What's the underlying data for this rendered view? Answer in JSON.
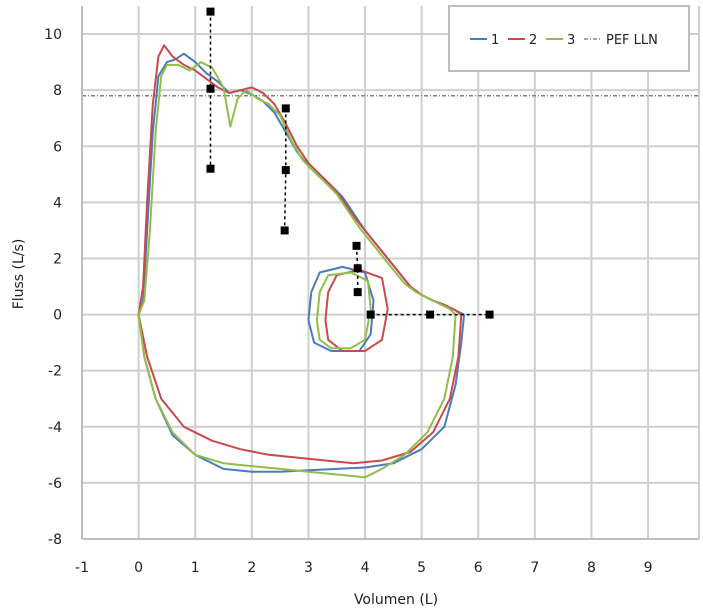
{
  "chart_data": {
    "type": "line",
    "title": "",
    "xlabel": "Volumen (L)",
    "ylabel": "Fluss (L/s)",
    "xlim": [
      -1,
      9.9
    ],
    "ylim": [
      -8,
      11
    ],
    "x_ticks": [
      "-1",
      "0",
      "1",
      "2",
      "3",
      "4",
      "5",
      "6",
      "7",
      "8",
      "9"
    ],
    "y_ticks": [
      "-8",
      "-6",
      "-4",
      "-2",
      "0",
      "2",
      "4",
      "6",
      "8",
      "10"
    ],
    "grid": true,
    "legend_position": "top-right",
    "pef_lln": {
      "name": "PEF LLN",
      "y": 7.8,
      "color": "#808080"
    },
    "series": [
      {
        "name": "1",
        "color": "#4a7bbd",
        "expiration": [
          [
            0,
            0
          ],
          [
            0.08,
            0.5
          ],
          [
            0.15,
            3
          ],
          [
            0.25,
            6.5
          ],
          [
            0.35,
            8.5
          ],
          [
            0.5,
            9
          ],
          [
            0.65,
            9.1
          ],
          [
            0.8,
            9.3
          ],
          [
            1.0,
            9.0
          ],
          [
            1.2,
            8.6
          ],
          [
            1.4,
            8.3
          ],
          [
            1.6,
            7.9
          ],
          [
            1.8,
            8.0
          ],
          [
            2.0,
            7.85
          ],
          [
            2.2,
            7.6
          ],
          [
            2.4,
            7.2
          ],
          [
            2.6,
            6.5
          ],
          [
            2.8,
            5.8
          ],
          [
            3.0,
            5.3
          ],
          [
            3.2,
            4.9
          ],
          [
            3.4,
            4.6
          ],
          [
            3.6,
            4.2
          ],
          [
            3.8,
            3.6
          ],
          [
            4.0,
            3.0
          ],
          [
            4.2,
            2.5
          ],
          [
            4.4,
            2.0
          ],
          [
            4.6,
            1.5
          ],
          [
            4.8,
            1.0
          ],
          [
            5.0,
            0.7
          ],
          [
            5.2,
            0.5
          ],
          [
            5.4,
            0.35
          ],
          [
            5.6,
            0.15
          ],
          [
            5.75,
            0
          ]
        ],
        "inspiration": [
          [
            5.75,
            0
          ],
          [
            5.7,
            -1
          ],
          [
            5.6,
            -2.5
          ],
          [
            5.4,
            -4
          ],
          [
            5.0,
            -4.8
          ],
          [
            4.5,
            -5.3
          ],
          [
            4.0,
            -5.45
          ],
          [
            3.5,
            -5.5
          ],
          [
            3.0,
            -5.55
          ],
          [
            2.5,
            -5.6
          ],
          [
            2.0,
            -5.6
          ],
          [
            1.5,
            -5.5
          ],
          [
            1.0,
            -5.0
          ],
          [
            0.6,
            -4.3
          ],
          [
            0.3,
            -3.0
          ],
          [
            0.1,
            -1.5
          ],
          [
            0,
            0
          ]
        ],
        "tidal": [
          [
            3.0,
            -0.2
          ],
          [
            3.05,
            0.8
          ],
          [
            3.2,
            1.5
          ],
          [
            3.6,
            1.7
          ],
          [
            4.0,
            1.5
          ],
          [
            4.15,
            0.5
          ],
          [
            4.1,
            -0.7
          ],
          [
            3.9,
            -1.3
          ],
          [
            3.4,
            -1.3
          ],
          [
            3.1,
            -1.0
          ],
          [
            3.0,
            -0.2
          ]
        ]
      },
      {
        "name": "2",
        "color": "#c94a4a",
        "expiration": [
          [
            0,
            0
          ],
          [
            0.08,
            1
          ],
          [
            0.15,
            4
          ],
          [
            0.25,
            7.5
          ],
          [
            0.35,
            9.2
          ],
          [
            0.45,
            9.6
          ],
          [
            0.6,
            9.2
          ],
          [
            0.8,
            8.9
          ],
          [
            1.0,
            8.7
          ],
          [
            1.2,
            8.4
          ],
          [
            1.4,
            8.1
          ],
          [
            1.6,
            7.9
          ],
          [
            1.8,
            8.0
          ],
          [
            2.0,
            8.1
          ],
          [
            2.2,
            7.9
          ],
          [
            2.4,
            7.5
          ],
          [
            2.6,
            6.8
          ],
          [
            2.8,
            6.0
          ],
          [
            3.0,
            5.4
          ],
          [
            3.2,
            5.0
          ],
          [
            3.4,
            4.6
          ],
          [
            3.6,
            4.1
          ],
          [
            3.8,
            3.5
          ],
          [
            4.0,
            3.0
          ],
          [
            4.2,
            2.5
          ],
          [
            4.4,
            2.0
          ],
          [
            4.6,
            1.5
          ],
          [
            4.8,
            1.0
          ],
          [
            5.0,
            0.7
          ],
          [
            5.2,
            0.5
          ],
          [
            5.4,
            0.35
          ],
          [
            5.6,
            0.15
          ],
          [
            5.7,
            0
          ]
        ],
        "inspiration": [
          [
            5.7,
            0
          ],
          [
            5.65,
            -1.5
          ],
          [
            5.5,
            -3
          ],
          [
            5.2,
            -4.2
          ],
          [
            4.8,
            -4.9
          ],
          [
            4.3,
            -5.2
          ],
          [
            3.8,
            -5.3
          ],
          [
            3.3,
            -5.2
          ],
          [
            2.8,
            -5.1
          ],
          [
            2.3,
            -5.0
          ],
          [
            1.8,
            -4.8
          ],
          [
            1.3,
            -4.5
          ],
          [
            0.8,
            -4.0
          ],
          [
            0.4,
            -3.0
          ],
          [
            0.15,
            -1.5
          ],
          [
            0,
            0
          ]
        ],
        "tidal": [
          [
            3.3,
            -0.2
          ],
          [
            3.35,
            0.8
          ],
          [
            3.5,
            1.4
          ],
          [
            3.9,
            1.6
          ],
          [
            4.3,
            1.3
          ],
          [
            4.4,
            0.2
          ],
          [
            4.3,
            -0.9
          ],
          [
            4.0,
            -1.3
          ],
          [
            3.6,
            -1.3
          ],
          [
            3.35,
            -0.9
          ],
          [
            3.3,
            -0.2
          ]
        ]
      },
      {
        "name": "3",
        "color": "#92bd4a",
        "expiration": [
          [
            0,
            0
          ],
          [
            0.1,
            0.5
          ],
          [
            0.2,
            3
          ],
          [
            0.3,
            6.5
          ],
          [
            0.4,
            8.5
          ],
          [
            0.5,
            8.9
          ],
          [
            0.7,
            8.9
          ],
          [
            0.9,
            8.7
          ],
          [
            1.1,
            9.0
          ],
          [
            1.3,
            8.8
          ],
          [
            1.5,
            8.1
          ],
          [
            1.62,
            6.7
          ],
          [
            1.75,
            7.7
          ],
          [
            1.9,
            8.0
          ],
          [
            2.1,
            7.7
          ],
          [
            2.3,
            7.5
          ],
          [
            2.5,
            7.1
          ],
          [
            2.7,
            6.2
          ],
          [
            2.9,
            5.5
          ],
          [
            3.1,
            5.1
          ],
          [
            3.3,
            4.7
          ],
          [
            3.5,
            4.3
          ],
          [
            3.7,
            3.7
          ],
          [
            3.9,
            3.1
          ],
          [
            4.1,
            2.6
          ],
          [
            4.3,
            2.1
          ],
          [
            4.5,
            1.6
          ],
          [
            4.7,
            1.1
          ],
          [
            4.9,
            0.8
          ],
          [
            5.1,
            0.6
          ],
          [
            5.3,
            0.4
          ],
          [
            5.5,
            0.2
          ],
          [
            5.6,
            0
          ]
        ],
        "inspiration": [
          [
            5.6,
            0
          ],
          [
            5.55,
            -1.5
          ],
          [
            5.4,
            -3
          ],
          [
            5.1,
            -4.2
          ],
          [
            4.7,
            -5.0
          ],
          [
            4.3,
            -5.5
          ],
          [
            4.0,
            -5.8
          ],
          [
            3.5,
            -5.7
          ],
          [
            3.0,
            -5.6
          ],
          [
            2.5,
            -5.5
          ],
          [
            2.0,
            -5.4
          ],
          [
            1.5,
            -5.3
          ],
          [
            1.0,
            -5.0
          ],
          [
            0.6,
            -4.2
          ],
          [
            0.3,
            -3.0
          ],
          [
            0.1,
            -1.5
          ],
          [
            0,
            0
          ]
        ],
        "tidal": [
          [
            3.15,
            -0.2
          ],
          [
            3.2,
            0.8
          ],
          [
            3.35,
            1.4
          ],
          [
            3.75,
            1.5
          ],
          [
            4.05,
            1.2
          ],
          [
            4.1,
            0.2
          ],
          [
            4.0,
            -0.9
          ],
          [
            3.75,
            -1.2
          ],
          [
            3.4,
            -1.2
          ],
          [
            3.2,
            -0.9
          ],
          [
            3.15,
            -0.2
          ]
        ]
      }
    ],
    "markers": [
      {
        "points": [
          [
            1.27,
            10.8
          ],
          [
            1.27,
            8.05
          ],
          [
            1.27,
            5.2
          ]
        ]
      },
      {
        "points": [
          [
            2.6,
            7.35
          ],
          [
            2.6,
            5.15
          ],
          [
            2.58,
            3.0
          ]
        ]
      },
      {
        "points": [
          [
            3.85,
            2.45
          ],
          [
            3.87,
            1.65
          ],
          [
            3.87,
            0.8
          ]
        ]
      },
      {
        "points": [
          [
            4.1,
            0
          ],
          [
            5.15,
            0
          ],
          [
            6.2,
            0
          ]
        ]
      }
    ]
  }
}
